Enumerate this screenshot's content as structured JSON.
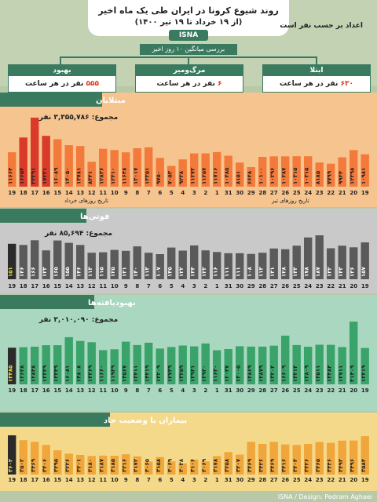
{
  "header": {
    "title": "روند شیوع کرونا در ایران طی یک ماه اخیر",
    "subtitle": "(از ۱۹ خرداد تا ۱۹ تیر ۱۴۰۰)",
    "agency": "ISNA",
    "unit_note": "اعداد بر حسب نفر است",
    "average_label": "بررسی میانگین ۱۰ روز اخیر"
  },
  "summary_cards": [
    {
      "title": "بهبود",
      "value": "۵۵۵",
      "suffix": " نفر در هر ساعت"
    },
    {
      "title": "مرگ‌ومیر",
      "value": "۶",
      "suffix": " نفر در هر ساعت"
    },
    {
      "title": "ابتلا",
      "value": "۶۳۰",
      "suffix": " نفر در هر ساعت"
    }
  ],
  "footer": {
    "credit": "ISNA / Design: Pedram Aghaei"
  },
  "colors": {
    "green": "#3a7a5e",
    "orange_bg": "#f5c48f",
    "orange_bar": "#f37a3a",
    "red_bar": "#d93a2a",
    "gray_bg": "#c9c9c9",
    "gray_bar": "#5a5a5a",
    "green_bg": "#a9d7c0",
    "green_bar": "#3aa36a",
    "yellow_bg": "#f5d98a",
    "yellow_bar": "#f0a63a"
  },
  "chart_data": [
    {
      "type": "bar",
      "title": "مبتلایان",
      "total_label": "مجموع: ۳,۳۵۵,۷۸۶ نفر",
      "categories": [
        "19",
        "20",
        "21",
        "22",
        "23",
        "24",
        "25",
        "26",
        "27",
        "28",
        "29",
        "30",
        "31",
        "1",
        "2",
        "3",
        "4",
        "5",
        "6",
        "7",
        "8",
        "9",
        "10",
        "11",
        "12",
        "13",
        "14",
        "15",
        "16",
        "17",
        "18",
        "19"
      ],
      "values": [
        10981,
        12398,
        9944,
        7799,
        8185,
        10315,
        10315,
        10287,
        10296,
        10100,
        6648,
        8151,
        10485,
        11716,
        11257,
        11273,
        9238,
        7053,
        9750,
        13351,
        13017,
        11648,
        12410,
        12836,
        8441,
        13781,
        14050,
        16089,
        17221,
        23391,
        16654,
        11664
      ],
      "value_labels": [
        "۱۰۹۸۱",
        "۱۲۳۹۸",
        "۹۹۴۴",
        "۷۷۹۹",
        "۸۱۸۵",
        "۱۰۳۱۵",
        "۱۰۳۱۵",
        "۱۰۲۸۷",
        "۱۰۲۹۶",
        "۱۰۱۰۰",
        "۶۶۴۸",
        "۸۱۵۱",
        "۱۰۴۸۵",
        "۱۱۷۱۶",
        "۱۱۲۵۷",
        "۱۱۲۷۳",
        "۹۲۳۸",
        "۷۰۵۳",
        "۹۷۵۰",
        "۱۳۳۵۱",
        "۱۳۰۱۷",
        "۱۱۶۴۸",
        "۱۲۴۱۰",
        "۱۲۸۳۶",
        "۸۴۴۱",
        "۱۳۷۸۱",
        "۱۴۰۵۰",
        "۱۶۰۸۹",
        "۱۷۲۲۱",
        "۲۳۳۹۱",
        "۱۶۶۵۴",
        "۱۱۶۶۴"
      ],
      "xaxis_note_left": "تاریخ روزهای خرداد",
      "xaxis_note_right": "تاریخ روزهای تیر"
    },
    {
      "type": "bar",
      "title": "فوتی‌ها",
      "total_label": "مجموع: ۸۵,۶۹۴ نفر",
      "categories": [
        "19",
        "20",
        "21",
        "22",
        "23",
        "24",
        "25",
        "26",
        "27",
        "28",
        "29",
        "30",
        "31",
        "1",
        "2",
        "3",
        "4",
        "5",
        "6",
        "7",
        "8",
        "9",
        "10",
        "11",
        "12",
        "13",
        "14",
        "15",
        "16",
        "17",
        "18",
        "19"
      ],
      "values": [
        157,
        136,
        143,
        132,
        187,
        178,
        143,
        128,
        131,
        113,
        108,
        111,
        111,
        116,
        123,
        144,
        122,
        135,
        107,
        113,
        140,
        121,
        125,
        115,
        113,
        146,
        155,
        165,
        123,
        166,
        146,
        151
      ],
      "value_labels": [
        "۱۵۷",
        "۱۳۶",
        "۱۴۳",
        "۱۳۲",
        "۱۸۷",
        "۱۷۸",
        "۱۴۳",
        "۱۲۸",
        "۱۳۱",
        "۱۱۳",
        "۱۰۸",
        "۱۱۱",
        "۱۱۱",
        "۱۱۶",
        "۱۲۳",
        "۱۴۴",
        "۱۲۲",
        "۱۳۵",
        "۱۰۷",
        "۱۱۳",
        "۱۴۰",
        "۱۲۱",
        "۱۲۵",
        "۱۱۵",
        "۱۱۳",
        "۱۴۶",
        "۱۵۵",
        "۱۶۵",
        "۱۲۳",
        "۱۶۶",
        "۱۴۶",
        "۱۵۱"
      ]
    },
    {
      "type": "bar",
      "title": "بهبودیافته‌ها",
      "total_label": "مجموع: ۳,۰۱۰,۰۹۰ نفر",
      "categories": [
        "19",
        "20",
        "21",
        "22",
        "23",
        "24",
        "25",
        "26",
        "27",
        "28",
        "29",
        "30",
        "31",
        "1",
        "2",
        "3",
        "4",
        "5",
        "6",
        "7",
        "8",
        "9",
        "10",
        "11",
        "12",
        "13",
        "14",
        "15",
        "16",
        "17",
        "18",
        "19"
      ],
      "values": [
        12419,
        21409,
        12711,
        13484,
        13511,
        12809,
        13414,
        16609,
        13204,
        12879,
        12869,
        13005,
        12047,
        11640,
        13930,
        12941,
        13259,
        12739,
        12209,
        14219,
        13411,
        14567,
        11949,
        11660,
        14369,
        14808,
        16081,
        13349,
        13349,
        12848,
        12648,
        12485
      ],
      "value_labels": [
        "۱۲۴۱۹",
        "۲۱۴۰۹",
        "۱۲۷۱۱",
        "۱۳۴۸۴",
        "۱۳۵۱۱",
        "۱۲۸۰۹",
        "۱۳۴۱۴",
        "۱۶۶۰۹",
        "۱۳۲۰۴",
        "۱۲۸۷۹",
        "۱۲۸۶۹",
        "۱۳۰۰۵",
        "۱۲۰۴۷",
        "۱۱۶۴۰",
        "۱۳۹۳۰",
        "۱۲۹۴۱",
        "۱۳۲۵۹",
        "۱۲۷۳۹",
        "۱۲۲۰۹",
        "۱۴۲۱۹",
        "۱۳۴۱۱",
        "۱۴۵۶۷",
        "۱۱۹۴۹",
        "۱۱۶۶۰",
        "۱۴۳۶۹",
        "۱۴۸۰۸",
        "۱۶۰۸۱",
        "۱۳۳۴۹",
        "۱۳۳۴۹",
        "۱۲۸۴۸",
        "۱۲۶۴۸",
        "۱۲۴۸۵"
      ]
    },
    {
      "type": "bar",
      "title": "بیماران با وضعیت حاد",
      "categories": [
        "19",
        "20",
        "21",
        "22",
        "23",
        "24",
        "25",
        "26",
        "27",
        "28",
        "29",
        "30",
        "31",
        "1",
        "2",
        "3",
        "4",
        "5",
        "6",
        "7",
        "8",
        "9",
        "10",
        "11",
        "12",
        "13",
        "14",
        "15",
        "16",
        "17",
        "18",
        "19"
      ],
      "values": [
        3584,
        3496,
        3493,
        3446,
        3465,
        3426,
        3404,
        3416,
        3469,
        3426,
        3469,
        3207,
        3258,
        3178,
        3069,
        3106,
        3028,
        3069,
        3158,
        3065,
        3172,
        3216,
        3185,
        3187,
        3180,
        3201,
        3226,
        3295,
        3406,
        3469,
        3502,
        3602
      ],
      "value_labels": [
        "۳۵۸۴",
        "۳۴۹۶",
        "۳۴۹۳",
        "۳۴۴۶",
        "۳۴۶۵",
        "۳۴۲۶",
        "۳۴۰۴",
        "۳۴۱۶",
        "۳۴۶۹",
        "۳۴۲۶",
        "۳۴۶۹",
        "۳۲۰۷",
        "۳۲۵۸",
        "۳۱۷۸",
        "۳۰۶۹",
        "۳۱۰۶",
        "۳۰۲۸",
        "۳۰۶۹",
        "۳۱۵۸",
        "۳۰۶۵",
        "۳۱۷۲",
        "۳۲۱۶",
        "۳۱۸۵",
        "۳۱۸۷",
        "۳۱۸۰",
        "۳۲۰۱",
        "۳۲۲۶",
        "۳۲۹۵",
        "۳۴۰۶",
        "۳۴۶۹",
        "۳۵۰۲",
        "۳۶۰۲"
      ]
    }
  ]
}
